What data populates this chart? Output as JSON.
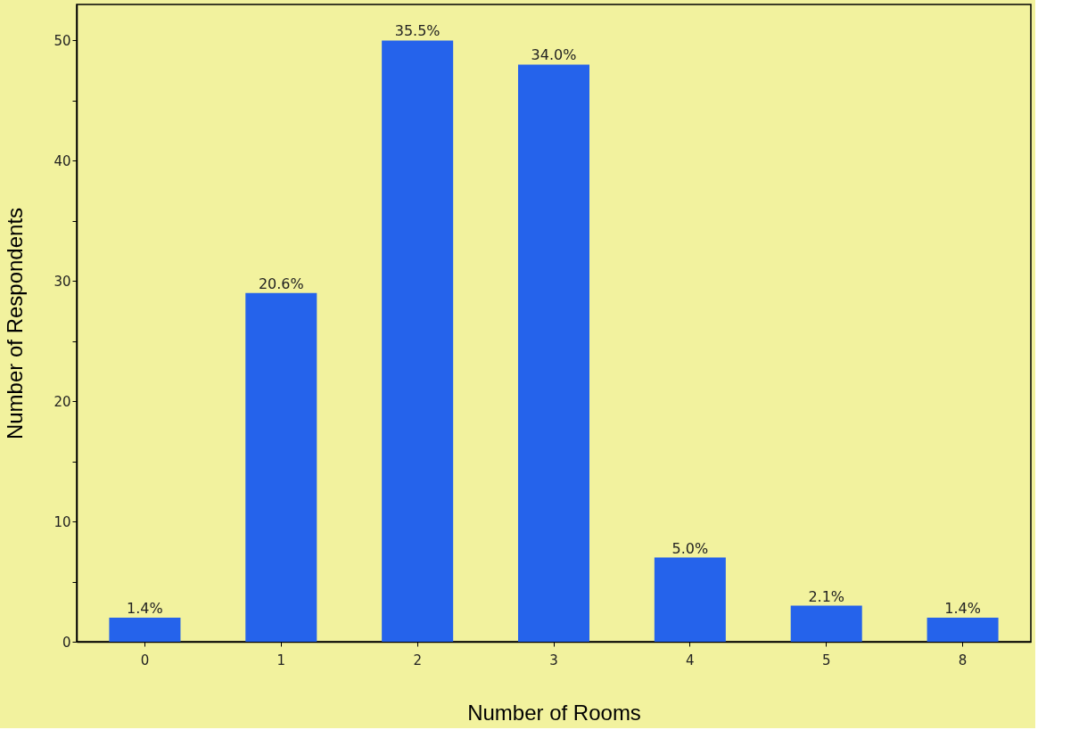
{
  "chart_data": {
    "type": "bar",
    "xlabel": "Number of Rooms",
    "ylabel": "Number of Respondents",
    "categories": [
      "0",
      "1",
      "2",
      "3",
      "4",
      "5",
      "8"
    ],
    "values": [
      2,
      29,
      50,
      48,
      7,
      3,
      2
    ],
    "annotations": [
      {
        "text": "1.4%",
        "x": "0",
        "y": 2
      },
      {
        "text": "20.6%",
        "x": "1",
        "y": 29
      },
      {
        "text": "35.5%",
        "x": "2",
        "y": 50
      },
      {
        "text": "34.0%",
        "x": "3",
        "y": 48
      },
      {
        "text": "5.0%",
        "x": "4",
        "y": 7
      },
      {
        "text": "2.1%",
        "x": "5",
        "y": 3
      },
      {
        "text": "1.4%",
        "x": "8",
        "y": 2
      }
    ],
    "color": "#2563eb",
    "ylim": [
      0,
      53
    ],
    "yticks": [
      0,
      {
        "value": 5,
        "label": null
      },
      10,
      {
        "value": 15,
        "label": null
      },
      20,
      {
        "value": 25,
        "label": null
      },
      30,
      {
        "value": 35,
        "label": null
      },
      40,
      {
        "value": 45,
        "label": null
      },
      50
    ],
    "grid": false
  }
}
